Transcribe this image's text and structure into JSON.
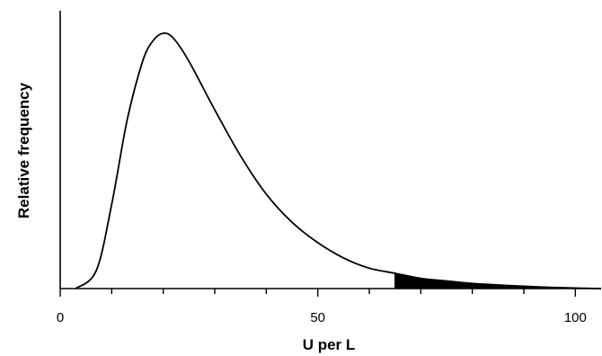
{
  "chart_data": {
    "type": "area",
    "title": "",
    "xlabel": "U per L",
    "ylabel": "Relative frequency",
    "xlim": [
      0,
      105
    ],
    "ylim": [
      0,
      1
    ],
    "x_ticks": [
      0,
      50,
      100
    ],
    "x_minor_tick_step": 10,
    "y_ticks": [],
    "grid": false,
    "legend": "none",
    "shaded_tail_from_x": 65,
    "shaded_tail_color": "#000000",
    "curve_color": "#000000",
    "series": [
      {
        "x": [
          3,
          7,
          10,
          13,
          16,
          18,
          20,
          22,
          25,
          30,
          35,
          40,
          45,
          50,
          55,
          60,
          65,
          70,
          75,
          80,
          85,
          90,
          95,
          100,
          105
        ],
        "y": [
          0.0,
          0.07,
          0.33,
          0.66,
          0.89,
          0.97,
          1.0,
          0.98,
          0.89,
          0.7,
          0.52,
          0.37,
          0.26,
          0.18,
          0.12,
          0.08,
          0.06,
          0.04,
          0.03,
          0.02,
          0.014,
          0.009,
          0.005,
          0.002,
          0.0
        ]
      }
    ]
  }
}
